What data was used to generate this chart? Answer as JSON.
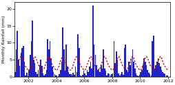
{
  "title": "",
  "ylabel": "Monthly Rainfall (mm)",
  "xlabel": "",
  "ylim": [
    0,
    22
  ],
  "yticks": [
    0,
    5,
    10,
    15,
    20
  ],
  "xtick_years": [
    2002,
    2004,
    2006,
    2008,
    2010
  ],
  "bar_color": "#2222cc",
  "line_color": "#cc0000",
  "long_term_avg": [
    2.0,
    2.5,
    3.5,
    4.5,
    5.5,
    6.0,
    5.5,
    4.5,
    3.5,
    3.0,
    2.5,
    2.0
  ],
  "monthly_precip": [
    1.2,
    0.5,
    1.8,
    0.3,
    2.1,
    0.8,
    0.4,
    1.5,
    2.0,
    1.2,
    0.9,
    0.7,
    1.5,
    8.0,
    13.5,
    5.0,
    3.2,
    7.0,
    8.5,
    9.0,
    4.5,
    0.5,
    1.2,
    0.3,
    2.0,
    6.5,
    10.5,
    16.5,
    5.0,
    4.0,
    1.5,
    0.8,
    2.0,
    3.5,
    5.0,
    3.2,
    1.0,
    0.5,
    0.8,
    2.0,
    11.0,
    8.0,
    10.5,
    5.5,
    3.0,
    1.5,
    0.8,
    0.4,
    0.5,
    0.3,
    0.8,
    2.0,
    4.5,
    14.5,
    8.0,
    1.8,
    9.5,
    3.0,
    1.5,
    0.9,
    0.8,
    0.4,
    1.2,
    0.7,
    3.0,
    1.5,
    12.5,
    8.5,
    0.5,
    0.2,
    0.6,
    1.8,
    1.0,
    0.5,
    2.0,
    1.5,
    3.0,
    4.5,
    2.5,
    21.0,
    9.5,
    6.5,
    3.5,
    2.0,
    2.5,
    1.5,
    3.5,
    2.5,
    8.0,
    2.5,
    1.8,
    0.5,
    1.0,
    0.8,
    0.4,
    0.9,
    1.0,
    10.5,
    4.0,
    7.5,
    5.0,
    1.0,
    0.5,
    0.8,
    1.5,
    0.6,
    8.5,
    9.5,
    2.0,
    1.5,
    4.5,
    3.5,
    5.5,
    8.0,
    4.5,
    2.5,
    1.0,
    0.5,
    0.3,
    0.7,
    1.5,
    2.0,
    3.5,
    5.5,
    4.5,
    3.5,
    2.0,
    1.2,
    0.8,
    0.5,
    10.5,
    12.0,
    2.5,
    3.5,
    4.5,
    5.5,
    4.0,
    3.0,
    2.0,
    1.5,
    1.0,
    0.8,
    0.5,
    0.4
  ]
}
